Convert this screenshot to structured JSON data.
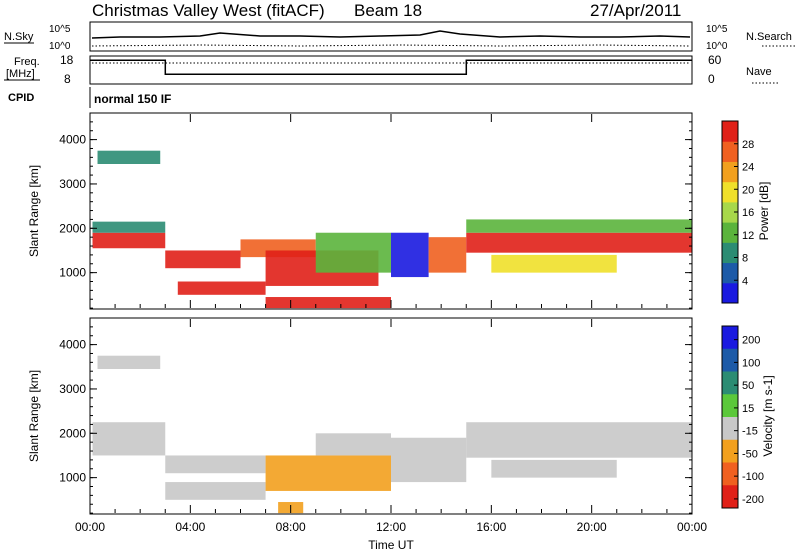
{
  "header": {
    "title": "Christmas Valley West (fitACF)",
    "beam": "Beam 18",
    "date": "27/Apr/2011"
  },
  "status_panels": {
    "nsky_label": "N.Sky",
    "nsearch_label": "N.Search",
    "noise_ticks": [
      "10^5",
      "10^0"
    ],
    "freq_label_line1": "Freq.",
    "freq_label_line2": "[MHz]",
    "freq_ticks": [
      "18",
      "8"
    ],
    "nave_label": "Nave",
    "nave_ticks": [
      "60",
      "0"
    ],
    "cpid_label": "CPID",
    "cpid_value": "normal 150 IF",
    "freq_trace_mhz": [
      [
        0,
        16.5
      ],
      [
        3.0,
        16.5
      ],
      [
        3.0,
        11.5
      ],
      [
        15.0,
        11.5
      ],
      [
        15.0,
        16.5
      ],
      [
        24,
        16.5
      ]
    ]
  },
  "chart_data": [
    {
      "type": "heatmap",
      "name": "power",
      "ylabel": "Slant Range [km]",
      "xlabel": "",
      "ylim": [
        180,
        4600
      ],
      "xlim": [
        0,
        24
      ],
      "yticks": [
        1000,
        2000,
        3000,
        4000
      ],
      "colorbar": {
        "label": "Power [dB]",
        "ticks": [
          "4",
          "8",
          "12",
          "16",
          "20",
          "24",
          "28"
        ],
        "colors": [
          "#1a1ae0",
          "#1c5aa8",
          "#2b8c73",
          "#5bb43c",
          "#a8d84a",
          "#f0e02a",
          "#f2a01e",
          "#f06020",
          "#e02018"
        ]
      },
      "regions": [
        {
          "x": [
            0.1,
            3.0
          ],
          "y": [
            1550,
            1900
          ],
          "color": "#e02018"
        },
        {
          "x": [
            0.1,
            3.0
          ],
          "y": [
            1900,
            2150
          ],
          "color": "#2b8c73"
        },
        {
          "x": [
            0.3,
            2.8
          ],
          "y": [
            3450,
            3750
          ],
          "color": "#2b8c73"
        },
        {
          "x": [
            3.0,
            6.0
          ],
          "y": [
            1100,
            1500
          ],
          "color": "#e02018"
        },
        {
          "x": [
            6.0,
            9.0
          ],
          "y": [
            1350,
            1750
          ],
          "color": "#f06020"
        },
        {
          "x": [
            3.5,
            7.0
          ],
          "y": [
            500,
            800
          ],
          "color": "#e02018"
        },
        {
          "x": [
            7.0,
            11.5
          ],
          "y": [
            700,
            1500
          ],
          "color": "#e02018"
        },
        {
          "x": [
            9.0,
            12.0
          ],
          "y": [
            1000,
            1900
          ],
          "color": "#5bb43c"
        },
        {
          "x": [
            12.0,
            13.5
          ],
          "y": [
            900,
            1900
          ],
          "color": "#1a1ae0"
        },
        {
          "x": [
            13.5,
            15.0
          ],
          "y": [
            1000,
            1800
          ],
          "color": "#f06020"
        },
        {
          "x": [
            15.0,
            24.0
          ],
          "y": [
            1450,
            1900
          ],
          "color": "#e02018"
        },
        {
          "x": [
            15.0,
            24.0
          ],
          "y": [
            1900,
            2200
          ],
          "color": "#5bb43c"
        },
        {
          "x": [
            16.0,
            21.0
          ],
          "y": [
            1000,
            1400
          ],
          "color": "#f0e02a"
        },
        {
          "x": [
            7.0,
            12.0
          ],
          "y": [
            200,
            450
          ],
          "color": "#e02018"
        }
      ]
    },
    {
      "type": "heatmap",
      "name": "velocity",
      "ylabel": "Slant Range [km]",
      "xlabel": "Time UT",
      "ylim": [
        180,
        4600
      ],
      "xlim": [
        0,
        24
      ],
      "yticks": [
        1000,
        2000,
        3000,
        4000
      ],
      "xticks": [
        "00:00",
        "04:00",
        "08:00",
        "12:00",
        "16:00",
        "20:00",
        "00:00"
      ],
      "colorbar": {
        "label": "Velocity [m s-1]",
        "ticks": [
          "200",
          "100",
          "50",
          "15",
          "-15",
          "-50",
          "-100",
          "-200"
        ],
        "colors": [
          "#1a1ae0",
          "#1c5aa8",
          "#2b8c73",
          "#5bc83a",
          "#c8c8c8",
          "#f2a01e",
          "#f06020",
          "#e02018"
        ]
      },
      "regions": [
        {
          "x": [
            0.1,
            3.0
          ],
          "y": [
            1500,
            2250
          ],
          "color": "#c8c8c8"
        },
        {
          "x": [
            3.0,
            7.0
          ],
          "y": [
            1100,
            1500
          ],
          "color": "#c8c8c8"
        },
        {
          "x": [
            3.0,
            7.0
          ],
          "y": [
            500,
            900
          ],
          "color": "#c8c8c8"
        },
        {
          "x": [
            7.0,
            12.0
          ],
          "y": [
            700,
            1500
          ],
          "color": "#f2a01e"
        },
        {
          "x": [
            9.0,
            12.0
          ],
          "y": [
            1500,
            2000
          ],
          "color": "#c8c8c8"
        },
        {
          "x": [
            12.0,
            15.0
          ],
          "y": [
            900,
            1900
          ],
          "color": "#c8c8c8"
        },
        {
          "x": [
            15.0,
            24.0
          ],
          "y": [
            1450,
            2250
          ],
          "color": "#c8c8c8"
        },
        {
          "x": [
            16.0,
            21.0
          ],
          "y": [
            1000,
            1400
          ],
          "color": "#c8c8c8"
        },
        {
          "x": [
            0.3,
            2.8
          ],
          "y": [
            3450,
            3750
          ],
          "color": "#c8c8c8"
        },
        {
          "x": [
            7.5,
            8.5
          ],
          "y": [
            200,
            450
          ],
          "color": "#f2a01e"
        }
      ]
    }
  ]
}
